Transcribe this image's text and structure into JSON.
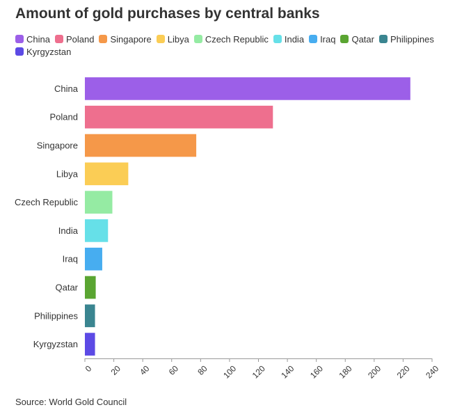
{
  "chart_data": {
    "type": "bar",
    "orientation": "horizontal",
    "title": "Amount of gold purchases by central banks",
    "source": "Source: World Gold Council",
    "categories": [
      "China",
      "Poland",
      "Singapore",
      "Libya",
      "Czech Republic",
      "India",
      "Iraq",
      "Qatar",
      "Philippines",
      "Kyrgyzstan"
    ],
    "values": [
      225,
      130,
      77,
      30,
      19,
      16,
      12,
      7.5,
      7,
      7
    ],
    "colors": [
      "#9c5fe8",
      "#ee6f8e",
      "#f59849",
      "#fbcd55",
      "#95eba3",
      "#66e0e8",
      "#47adf0",
      "#5aa532",
      "#3a8590",
      "#5c4ae5"
    ],
    "xlim": [
      0,
      240
    ],
    "xticks": [
      0,
      20,
      40,
      60,
      80,
      100,
      120,
      140,
      160,
      180,
      200,
      220,
      240
    ],
    "grid": false,
    "legend_position": "top"
  }
}
